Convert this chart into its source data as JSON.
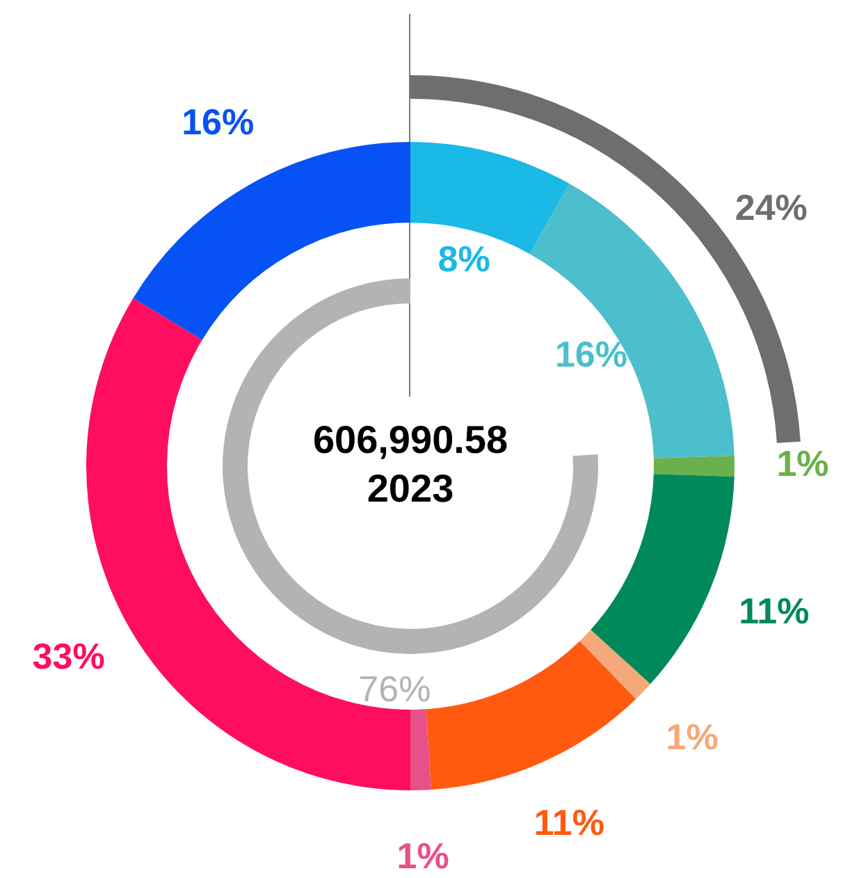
{
  "chart_data": {
    "type": "donut",
    "title": "606,990.58",
    "subtitle": "2023",
    "series": [
      {
        "values": [
          76
        ],
        "colors": [
          "#b3b3b3"
        ],
        "value_labels": [
          "76%"
        ]
      },
      {
        "values": [
          8,
          16,
          1,
          11,
          1,
          11,
          1,
          33,
          16
        ],
        "colors": [
          "#1ab9e6",
          "#4dbfcc",
          "#6ab04c",
          "#008a5a",
          "#f5a97a",
          "#ff5a10",
          "#e8508a",
          "#ff0d5e",
          "#0652f5"
        ],
        "value_labels": [
          "8%",
          "16%",
          "1%",
          "11%",
          "1%",
          "11%",
          "1%",
          "33%",
          "16%"
        ]
      },
      {
        "values": [
          24
        ],
        "colors": [
          "#6e6e6e"
        ],
        "value_labels": [
          "24%"
        ]
      }
    ]
  }
}
